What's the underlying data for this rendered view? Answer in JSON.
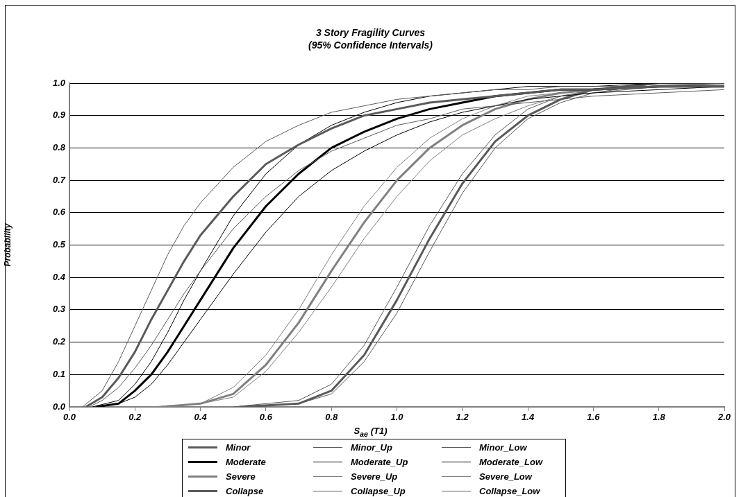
{
  "chart_data": {
    "type": "line",
    "title": "3 Story Fragility Curves",
    "subtitle": "(95% Confidence Intervals)",
    "xlabel": "S$_{ae}$ (T1)",
    "ylabel": "Probability",
    "xlim": [
      0,
      2
    ],
    "xticks": [
      {
        "value": 0,
        "label": "0.0"
      },
      {
        "value": 0.2,
        "label": "0.2"
      },
      {
        "value": 0.4,
        "label": "0.4"
      },
      {
        "value": 0.6,
        "label": "0.6"
      },
      {
        "value": 0.8,
        "label": "0.8"
      },
      {
        "value": 1,
        "label": "1.0"
      },
      {
        "value": 1.2,
        "label": "1.2"
      },
      {
        "value": 1.4,
        "label": "1.4"
      },
      {
        "value": 1.6,
        "label": "1.6"
      },
      {
        "value": 1.8,
        "label": "1.8"
      },
      {
        "value": 2,
        "label": "2.0"
      }
    ],
    "ylim": [
      0,
      1
    ],
    "yticks": [
      {
        "value": 0,
        "label": "0.0"
      },
      {
        "value": 0.1,
        "label": "0.1"
      },
      {
        "value": 0.2,
        "label": "0.2"
      },
      {
        "value": 0.3,
        "label": "0.3"
      },
      {
        "value": 0.4,
        "label": "0.4"
      },
      {
        "value": 0.5,
        "label": "0.5"
      },
      {
        "value": 0.6,
        "label": "0.6"
      },
      {
        "value": 0.7,
        "label": "0.7"
      },
      {
        "value": 0.8,
        "label": "0.8"
      },
      {
        "value": 0.9,
        "label": "0.9"
      },
      {
        "value": 1,
        "label": "1.0"
      }
    ],
    "grid": "y",
    "legend": "bottom",
    "marker": "none",
    "line_style": "solid",
    "series": [
      {
        "name": "Minor",
        "color": "#5a5a5a",
        "x": [
          0.05,
          0.1,
          0.15,
          0.2,
          0.25,
          0.3,
          0.35,
          0.4,
          0.5,
          0.6,
          0.7,
          0.8,
          0.9,
          1,
          1.1,
          1.2,
          1.3,
          1.4,
          1.5,
          1.6,
          1.8,
          2
        ],
        "values": [
          0,
          0.03,
          0.09,
          0.17,
          0.27,
          0.36,
          0.45,
          0.53,
          0.65,
          0.75,
          0.81,
          0.86,
          0.9,
          0.92,
          0.94,
          0.95,
          0.96,
          0.97,
          0.98,
          0.98,
          0.99,
          0.99
        ]
      },
      {
        "name": "Minor_Up",
        "color": "#5a5a5a",
        "x": [
          0.04,
          0.1,
          0.15,
          0.2,
          0.25,
          0.3,
          0.35,
          0.4,
          0.5,
          0.6,
          0.7,
          0.8,
          0.9,
          1,
          1.1,
          1.2,
          1.3,
          1.4,
          1.5,
          1.6,
          1.8,
          2
        ],
        "values": [
          0,
          0.05,
          0.14,
          0.25,
          0.36,
          0.47,
          0.56,
          0.63,
          0.74,
          0.82,
          0.87,
          0.91,
          0.93,
          0.95,
          0.96,
          0.97,
          0.98,
          0.98,
          0.99,
          0.99,
          0.99,
          1.0
        ]
      },
      {
        "name": "Minor_Low",
        "color": "#5a5a5a",
        "x": [
          0.06,
          0.1,
          0.15,
          0.2,
          0.25,
          0.3,
          0.35,
          0.4,
          0.5,
          0.6,
          0.7,
          0.8,
          0.9,
          1,
          1.1,
          1.2,
          1.3,
          1.4,
          1.5,
          1.6,
          1.8,
          2
        ],
        "values": [
          0,
          0.02,
          0.06,
          0.12,
          0.19,
          0.27,
          0.35,
          0.42,
          0.55,
          0.65,
          0.73,
          0.79,
          0.83,
          0.87,
          0.89,
          0.92,
          0.93,
          0.94,
          0.95,
          0.96,
          0.97,
          0.98
        ]
      },
      {
        "name": "Moderate",
        "color": "#000000",
        "x": [
          0.08,
          0.15,
          0.2,
          0.25,
          0.3,
          0.35,
          0.4,
          0.5,
          0.6,
          0.7,
          0.8,
          0.9,
          1,
          1.1,
          1.2,
          1.3,
          1.4,
          1.5,
          1.6,
          1.8,
          2
        ],
        "values": [
          0,
          0.01,
          0.05,
          0.1,
          0.17,
          0.25,
          0.33,
          0.49,
          0.62,
          0.72,
          0.8,
          0.85,
          0.89,
          0.92,
          0.94,
          0.96,
          0.97,
          0.98,
          0.98,
          0.99,
          0.99
        ]
      },
      {
        "name": "Moderate_Up",
        "color": "#000000",
        "x": [
          0.07,
          0.15,
          0.2,
          0.25,
          0.3,
          0.35,
          0.4,
          0.5,
          0.6,
          0.7,
          0.8,
          0.9,
          1,
          1.1,
          1.2,
          1.3,
          1.4,
          1.5,
          1.6,
          1.8,
          2
        ],
        "values": [
          0,
          0.02,
          0.07,
          0.14,
          0.23,
          0.33,
          0.42,
          0.59,
          0.72,
          0.81,
          0.87,
          0.91,
          0.94,
          0.96,
          0.97,
          0.98,
          0.99,
          0.99,
          0.99,
          1.0,
          1.0
        ]
      },
      {
        "name": "Moderate_Low",
        "color": "#000000",
        "x": [
          0.09,
          0.15,
          0.2,
          0.25,
          0.3,
          0.35,
          0.4,
          0.5,
          0.6,
          0.7,
          0.8,
          0.9,
          1,
          1.1,
          1.2,
          1.3,
          1.4,
          1.5,
          1.6,
          1.8,
          2
        ],
        "values": [
          0,
          0.01,
          0.03,
          0.07,
          0.13,
          0.2,
          0.27,
          0.41,
          0.54,
          0.65,
          0.73,
          0.79,
          0.84,
          0.88,
          0.91,
          0.93,
          0.95,
          0.96,
          0.97,
          0.98,
          0.99
        ]
      },
      {
        "name": "Severe",
        "color": "#808080",
        "x": [
          0.28,
          0.4,
          0.5,
          0.6,
          0.7,
          0.8,
          0.9,
          1,
          1.1,
          1.2,
          1.3,
          1.4,
          1.5,
          1.6,
          1.8,
          2
        ],
        "values": [
          0,
          0.01,
          0.04,
          0.13,
          0.26,
          0.42,
          0.57,
          0.7,
          0.8,
          0.87,
          0.92,
          0.95,
          0.97,
          0.98,
          0.99,
          1.0
        ]
      },
      {
        "name": "Severe_Up",
        "color": "#808080",
        "x": [
          0.25,
          0.4,
          0.5,
          0.6,
          0.7,
          0.8,
          0.9,
          1,
          1.1,
          1.2,
          1.3,
          1.4,
          1.5,
          1.6,
          1.8,
          2
        ],
        "values": [
          0,
          0.01,
          0.06,
          0.16,
          0.3,
          0.47,
          0.62,
          0.74,
          0.83,
          0.89,
          0.93,
          0.96,
          0.97,
          0.98,
          0.99,
          1.0
        ]
      },
      {
        "name": "Severe_Low",
        "color": "#808080",
        "x": [
          0.3,
          0.4,
          0.5,
          0.6,
          0.7,
          0.8,
          0.9,
          1,
          1.1,
          1.2,
          1.3,
          1.4,
          1.5,
          1.6,
          1.8,
          2
        ],
        "values": [
          0,
          0.01,
          0.03,
          0.11,
          0.23,
          0.37,
          0.52,
          0.65,
          0.76,
          0.84,
          0.89,
          0.93,
          0.96,
          0.97,
          0.99,
          1.0
        ]
      },
      {
        "name": "Collapse",
        "color": "#595959",
        "x": [
          0.52,
          0.7,
          0.8,
          0.9,
          1,
          1.1,
          1.2,
          1.3,
          1.4,
          1.5,
          1.6,
          1.8,
          2
        ],
        "values": [
          0,
          0.01,
          0.05,
          0.16,
          0.33,
          0.52,
          0.69,
          0.82,
          0.9,
          0.95,
          0.98,
          1.0,
          1.0
        ]
      },
      {
        "name": "Collapse_Up",
        "color": "#595959",
        "x": [
          0.5,
          0.7,
          0.8,
          0.9,
          1,
          1.1,
          1.2,
          1.3,
          1.4,
          1.5,
          1.6,
          1.8,
          2
        ],
        "values": [
          0,
          0.02,
          0.07,
          0.19,
          0.37,
          0.56,
          0.72,
          0.84,
          0.92,
          0.96,
          0.98,
          1.0,
          1.0
        ]
      },
      {
        "name": "Collapse_Low",
        "color": "#595959",
        "x": [
          0.55,
          0.7,
          0.8,
          0.9,
          1,
          1.1,
          1.2,
          1.3,
          1.4,
          1.5,
          1.6,
          1.8,
          2
        ],
        "values": [
          0,
          0.01,
          0.04,
          0.14,
          0.29,
          0.48,
          0.66,
          0.8,
          0.89,
          0.94,
          0.97,
          1.0,
          1.0
        ]
      }
    ]
  }
}
